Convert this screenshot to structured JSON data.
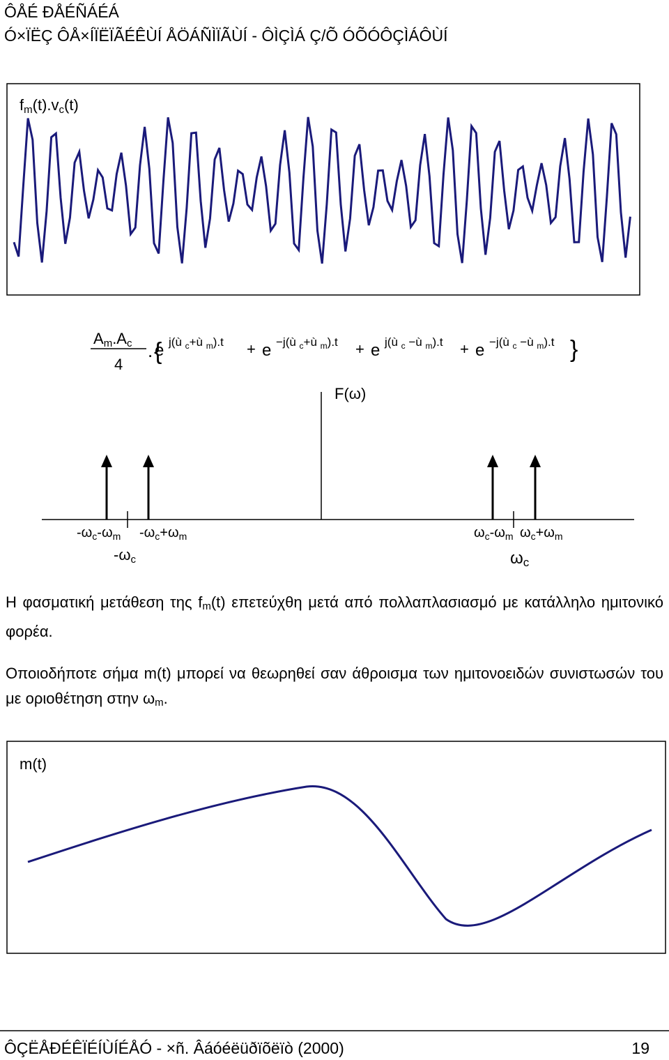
{
  "header": {
    "line1": "ÔÅÉ ÐÅÉÑÁÉÁ",
    "line2": "Ó×ÏËÇ ÔÅ×ÍÏËÏÃÉÊÙÍ ÅÖÁÑÌÏÃÙÍ - ÔÌÇÌÁ Ç/Õ ÓÕÓÔÇÌÁÔÙÍ"
  },
  "figure1": {
    "label": [
      "f",
      "m",
      "(t).v",
      "c",
      "(t)"
    ]
  },
  "formula": {
    "numerator": [
      "A",
      "m",
      ".A",
      "c"
    ],
    "denominator": "4",
    "dot": ".",
    "open": "{",
    "close": "}",
    "terms": [
      {
        "base": "e",
        "exponent": [
          "j(ù ",
          "c",
          "+ù ",
          "m",
          ").t"
        ]
      },
      {
        "sign": "+",
        "base": "e",
        "exponent": [
          "−j(ù ",
          "c",
          "+ù ",
          "m",
          ").t"
        ]
      },
      {
        "sign": "+",
        "base": "e",
        "exponent": [
          "j(ù ",
          "c",
          " −ù ",
          "m",
          ").t"
        ]
      },
      {
        "sign": "+",
        "base": "e",
        "exponent": [
          "−j(ù ",
          "c",
          " −ù ",
          "m",
          ").t"
        ]
      }
    ]
  },
  "spectrum": {
    "axis_label": "F(ω)",
    "labels": [
      [
        "-ω",
        "c",
        "-ω",
        "m"
      ],
      [
        "-ω",
        "c",
        "+ω",
        "m"
      ],
      [
        "-ω",
        "c"
      ],
      [
        "ω",
        "c",
        "-ω",
        "m"
      ],
      [
        "ω",
        "c",
        "+ω",
        "m"
      ],
      [
        "ω",
        "c"
      ]
    ]
  },
  "paragraphs": [
    [
      "Η φασματική μετάθεση της f",
      "m",
      "(t) επετεύχθη μετά από πολλαπλασιασμό με κατάλληλο ημιτονικό φορέα."
    ],
    [
      "Οποιοδήποτε σήμα m(t) μπορεί να θεωρηθεί σαν άθροισμα των ημιτονοειδών συνιστωσών του με οριοθέτηση στην ω",
      "m",
      "."
    ]
  ],
  "figure2": {
    "label": "m(t)"
  },
  "footer": {
    "left": "ÔÇËÅÐÉÊÏÉÍÙÍÉÅÓ - ×ñ. Âáóéëüðïõëïò (2000)",
    "page": "19"
  }
}
